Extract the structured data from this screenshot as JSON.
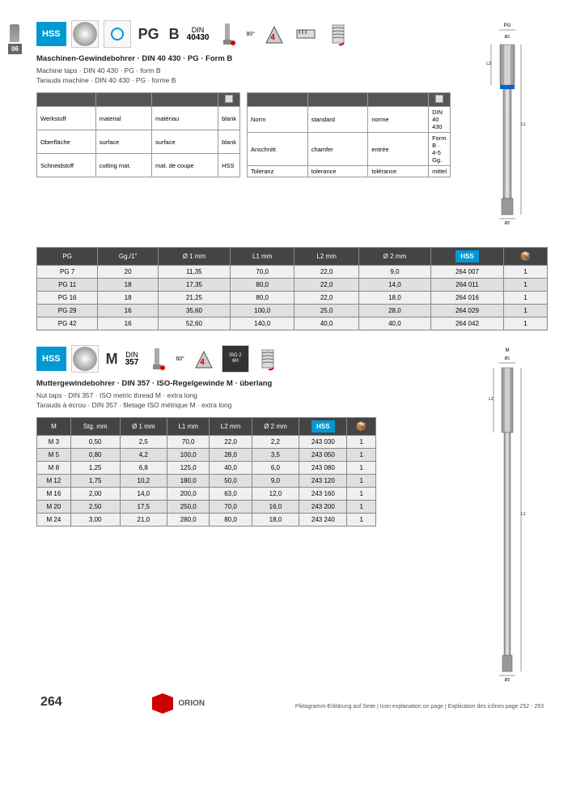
{
  "page_number_badge": "06",
  "section1": {
    "hss_label": "HSS",
    "thread_type": "PG",
    "form_letter": "B",
    "din_label": "DIN",
    "din_number": "40430",
    "angle": "80°",
    "holes": "4",
    "heading_main": "Maschinen-Gewindebohrer · DIN 40 430 · PG · Form B",
    "heading_sub1": "Machine taps · DIN 40 430 · PG · form B",
    "heading_sub2": "Tarauds machine · DIN 40 430 · PG · forme B",
    "small_table_left": {
      "rows": [
        [
          "Werkstoff",
          "material",
          "matériau"
        ],
        [
          "Oberfläche",
          "surface",
          "surface"
        ],
        [
          "Schneidstoff",
          "cutting mat.",
          "mat. de coupe"
        ]
      ],
      "vals": [
        "blank",
        "blank",
        "HSS"
      ]
    },
    "small_table_right": {
      "rows": [
        [
          "Norm",
          "standard",
          "norme"
        ],
        [
          "Anschnitt",
          "chamfer",
          "entrée"
        ],
        [
          "Toleranz",
          "tolerance",
          "tolérance"
        ]
      ],
      "vals": [
        "DIN 40 430",
        "Form B · 4-5 Gg.",
        "mittel"
      ]
    },
    "table": {
      "headers": [
        "PG",
        "Gg./1\"",
        "Ø 1 mm",
        "L1 mm",
        "L2 mm",
        "Ø 2 mm",
        "HSS",
        "pkg"
      ],
      "rows": [
        [
          "PG  7",
          "20",
          "11,35",
          "70,0",
          "22,0",
          "9,0",
          "264 007",
          "1"
        ],
        [
          "PG 11",
          "18",
          "17,35",
          "80,0",
          "22,0",
          "14,0",
          "264 011",
          "1"
        ],
        [
          "PG 16",
          "18",
          "21,25",
          "80,0",
          "22,0",
          "18,0",
          "264 016",
          "1"
        ],
        [
          "PG 29",
          "16",
          "35,60",
          "100,0",
          "25,0",
          "28,0",
          "264 029",
          "1"
        ],
        [
          "PG 42",
          "16",
          "52,60",
          "140,0",
          "40,0",
          "40,0",
          "264 042",
          "1"
        ]
      ]
    },
    "diagram_labels": {
      "pg": "PG",
      "d1": "Ø1",
      "l2": "L2",
      "l1": "L1",
      "d2": "Ø2"
    }
  },
  "section2": {
    "hss_label": "HSS",
    "thread_type": "M",
    "din_label": "DIN",
    "din_number": "357",
    "angle": "60°",
    "holes": "4",
    "iso_label": "ISO 2\n6H",
    "heading_main": "Muttergewindebohrer · DIN 357 · ISO-Regelgewinde M · überlang",
    "heading_sub1": "Nut taps · DIN 357 · ISO metric thread M · extra long",
    "heading_sub2": "Tarauds à écrou · DIN 357 · filetage ISO métrique M · extra long",
    "table": {
      "headers": [
        "M",
        "Stg. mm",
        "Ø 1 mm",
        "L1 mm",
        "L2 mm",
        "Ø 2 mm",
        "HSS",
        "pkg"
      ],
      "rows": [
        [
          "M  3",
          "0,50",
          "2,5",
          "70,0",
          "22,0",
          "2,2",
          "243 030",
          "1"
        ],
        [
          "M  5",
          "0,80",
          "4,2",
          "100,0",
          "28,0",
          "3,5",
          "243 050",
          "1"
        ],
        [
          "M  8",
          "1,25",
          "6,8",
          "125,0",
          "40,0",
          "6,0",
          "243 080",
          "1"
        ],
        [
          "M 12",
          "1,75",
          "10,2",
          "180,0",
          "50,0",
          "9,0",
          "243 120",
          "1"
        ],
        [
          "M 16",
          "2,00",
          "14,0",
          "200,0",
          "63,0",
          "12,0",
          "243 160",
          "1"
        ],
        [
          "M 20",
          "2,50",
          "17,5",
          "250,0",
          "70,0",
          "16,0",
          "243 200",
          "1"
        ],
        [
          "M 24",
          "3,00",
          "21,0",
          "280,0",
          "80,0",
          "18,0",
          "243 240",
          "1"
        ]
      ]
    },
    "diagram_labels": {
      "m": "M",
      "d1": "Ø1",
      "l2": "L2",
      "l1": "L1",
      "d2": "Ø2"
    }
  },
  "footer": {
    "page_num": "264",
    "company": "ORION",
    "pictograms_text": "Piktogramm-Erklärung auf Seite | Icon explanation on page | Explication des icônes page 252 - 253"
  }
}
